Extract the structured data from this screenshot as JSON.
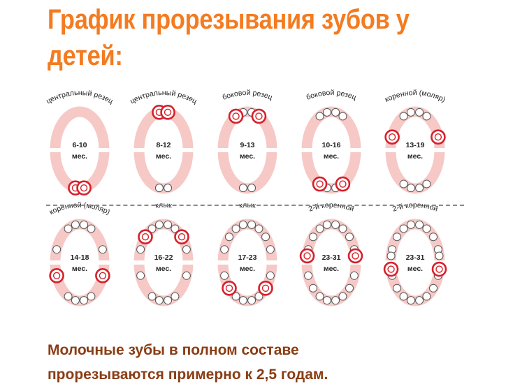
{
  "title": "График прорезывания зубов у детей:",
  "caption_line1": "Молочные зубы в полном составе",
  "caption_line2": "прорезываются примерно к 2,5 годам.",
  "colors": {
    "title": "#f47b20",
    "caption": "#8a3d14",
    "gum": "#f6c9c6",
    "highlight": "#d6202a"
  },
  "stages": [
    {
      "tooth": "центральный резец",
      "age": "6-10",
      "unit": "мес.",
      "jaw": "lower",
      "group": "central",
      "erupted": 0
    },
    {
      "tooth": "центральный резец",
      "age": "8-12",
      "unit": "мес.",
      "jaw": "upper",
      "group": "central",
      "erupted": 2
    },
    {
      "tooth": "боковой резец",
      "age": "9-13",
      "unit": "мес.",
      "jaw": "upper",
      "group": "lateral",
      "erupted": 4
    },
    {
      "tooth": "боковой резец",
      "age": "10-16",
      "unit": "мес.",
      "jaw": "lower",
      "group": "lateral",
      "erupted": 6
    },
    {
      "tooth": "коренной (моляр)",
      "age": "13-19",
      "unit": "мес.",
      "jaw": "upper",
      "group": "molar1",
      "erupted": 8
    },
    {
      "tooth": "коренной (моляр)",
      "age": "14-18",
      "unit": "мес.",
      "jaw": "lower",
      "group": "molar1",
      "erupted": 10
    },
    {
      "tooth": "клык",
      "age": "16-22",
      "unit": "мес.",
      "jaw": "upper",
      "group": "canine",
      "erupted": 12
    },
    {
      "tooth": "клык",
      "age": "17-23",
      "unit": "мес.",
      "jaw": "lower",
      "group": "canine",
      "erupted": 14
    },
    {
      "tooth": "2-й коренной",
      "age": "23-31",
      "unit": "мес.",
      "jaw": "lower",
      "group": "molar2",
      "erupted": 16
    },
    {
      "tooth": "2-й коренной",
      "age": "23-31",
      "unit": "мес.",
      "jaw": "upper",
      "group": "molar2",
      "erupted": 18
    }
  ]
}
